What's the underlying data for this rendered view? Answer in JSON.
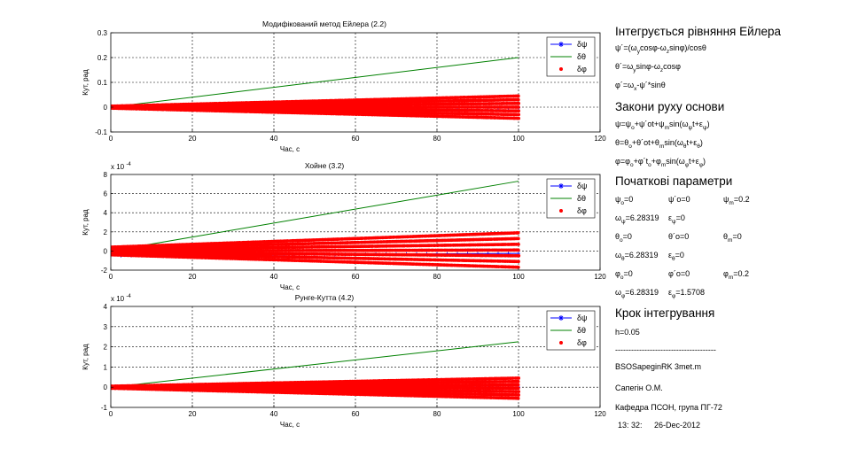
{
  "chart_data": [
    {
      "type": "line",
      "title": "Модифікований метод Ейлера (2.2)",
      "xlabel": "Час, с",
      "ylabel": "Кут, рад",
      "xlim": [
        0,
        120
      ],
      "ylim": [
        -0.1,
        0.3
      ],
      "xticks": [
        "0",
        "20",
        "40",
        "60",
        "80",
        "100",
        "120"
      ],
      "yticks": [
        "-0.1",
        "0",
        "0.1",
        "0.2",
        "0.3"
      ],
      "exponent": "",
      "grid": true,
      "legend_position": "top-right",
      "series": [
        {
          "name": "δψ",
          "style": "line-star",
          "color": "#0000ff",
          "x": [
            0,
            100
          ],
          "y": [
            -0.003,
            -0.003
          ]
        },
        {
          "name": "δθ",
          "style": "line",
          "color": "#008000",
          "x": [
            0,
            100
          ],
          "y": [
            0,
            0.2
          ]
        },
        {
          "name": "δφ",
          "style": "dots-envelope",
          "color": "#ff0000",
          "x": [
            0,
            100
          ],
          "env_start": [
            -0.004,
            0.004
          ],
          "env_end": [
            -0.045,
            0.045
          ]
        }
      ]
    },
    {
      "type": "line",
      "title": "Хойне (3.2)",
      "xlabel": "Час, с",
      "ylabel": "Кут, рад",
      "xlim": [
        0,
        120
      ],
      "ylim": [
        -2,
        8
      ],
      "xticks": [
        "0",
        "20",
        "40",
        "60",
        "80",
        "100",
        "120"
      ],
      "yticks": [
        "-2",
        "0",
        "2",
        "4",
        "6",
        "8"
      ],
      "exponent": "x 10",
      "exponent_power": "-4",
      "grid": true,
      "legend_position": "top-right",
      "series": [
        {
          "name": "δψ",
          "style": "line-star",
          "color": "#0000ff",
          "x": [
            0,
            100
          ],
          "y": [
            -0.5,
            -0.25
          ]
        },
        {
          "name": "δθ",
          "style": "line",
          "color": "#008000",
          "x": [
            0,
            100
          ],
          "y": [
            0,
            7.3
          ]
        },
        {
          "name": "δφ",
          "style": "dots-envelope",
          "color": "#ff0000",
          "x": [
            0,
            100
          ],
          "env_start": [
            -0.4,
            0.4
          ],
          "env_end": [
            -1.7,
            1.9
          ]
        }
      ]
    },
    {
      "type": "line",
      "title": "Рунге-Кутта (4.2)",
      "xlabel": "Час, с",
      "ylabel": "Кут, рад",
      "xlim": [
        0,
        120
      ],
      "ylim": [
        -1,
        4
      ],
      "xticks": [
        "0",
        "20",
        "40",
        "60",
        "80",
        "100",
        "120"
      ],
      "yticks": [
        "-1",
        "0",
        "1",
        "2",
        "3",
        "4"
      ],
      "exponent": "x 10",
      "exponent_power": "-4",
      "grid": true,
      "legend_position": "top-right",
      "series": [
        {
          "name": "δψ",
          "style": "line-star",
          "color": "#0000ff",
          "x": [
            0,
            100
          ],
          "y": [
            0,
            0
          ]
        },
        {
          "name": "δθ",
          "style": "line",
          "color": "#008000",
          "x": [
            0,
            100
          ],
          "y": [
            0,
            2.25
          ]
        },
        {
          "name": "δφ",
          "style": "dots-envelope",
          "color": "#ff0000",
          "x": [
            0,
            100
          ],
          "env_start": [
            -0.05,
            0.05
          ],
          "env_end": [
            -0.55,
            0.45
          ]
        }
      ]
    }
  ],
  "sidebar": {
    "euler_title": "Інтегрується рівняння Ейлера",
    "euler_eqs": [
      "ψ´=(ωycosφ-ωzsinφ)/cosθ",
      "θ´=ωysinφ-ωzcosφ",
      "φ´=ωx-ψ´*sinθ"
    ],
    "base_title": "Закони руху основи",
    "base_eqs": [
      "ψ=ψo+ψ´ot+ψmsin(ωψt+εψ)",
      "θ=θo+θ´ot+θmsin(ωθt+εθ)",
      "φ=φo+φ´to+φmsin(ωφt+εφ)"
    ],
    "init_title": "Початкові параметри",
    "params": [
      [
        "ψo=0",
        "ψ´o=0",
        "ψm=0.2"
      ],
      [
        "ωψ=6.28319",
        "εψ=0",
        ""
      ],
      [
        "θo=0",
        "θ´o=0",
        "θm=0"
      ],
      [
        "ωθ=6.28319",
        "εθ=0",
        ""
      ],
      [
        "φo=0",
        "φ´o=0",
        "φm=0.2"
      ],
      [
        "ωφ=6.28319",
        "εφ=1.5708",
        ""
      ]
    ],
    "step_title": "Крок інтегрування",
    "step_value": "h=0.05",
    "divider": "--------------------------------------",
    "file_name": "BSOSapeginRK 3met.m",
    "author": "Сапегін О.М.",
    "department": "Кафедра ПСОН, група ПГ-72",
    "time": "13: 32:",
    "date": "26-Dec-2012"
  }
}
